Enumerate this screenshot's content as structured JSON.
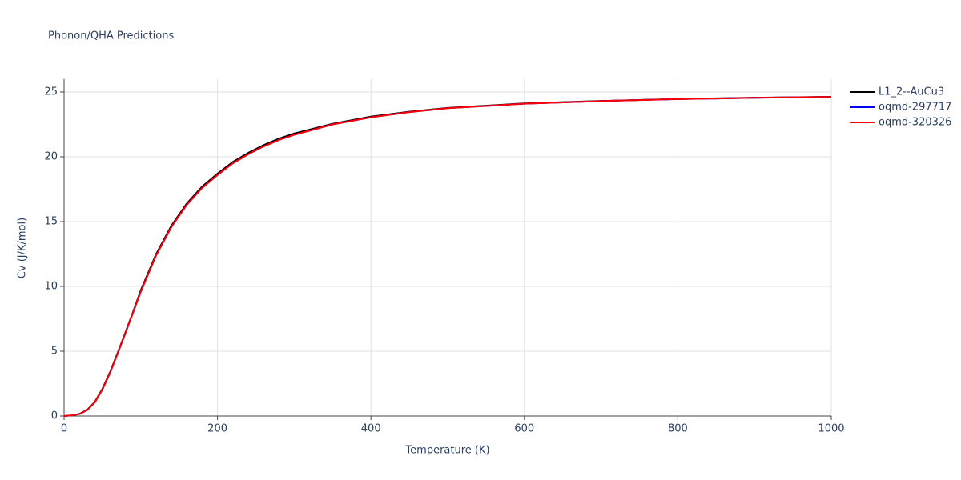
{
  "chart_data": {
    "type": "line",
    "title": "Phonon/QHA Predictions",
    "x_label": "Temperature (K)",
    "y_label": "Cv (J/K/mol)",
    "x": [
      0,
      10,
      20,
      30,
      40,
      50,
      60,
      70,
      80,
      90,
      100,
      120,
      140,
      160,
      180,
      200,
      220,
      240,
      260,
      280,
      300,
      350,
      400,
      450,
      500,
      600,
      700,
      800,
      900,
      1000
    ],
    "series": [
      {
        "name": "L1_2--AuCu3",
        "color": "#000000",
        "values": [
          0,
          0.05,
          0.16,
          0.47,
          1.08,
          2.1,
          3.4,
          4.9,
          6.45,
          8.05,
          9.7,
          12.5,
          14.7,
          16.4,
          17.7,
          18.7,
          19.6,
          20.3,
          20.9,
          21.4,
          21.8,
          22.55,
          23.1,
          23.48,
          23.77,
          24.12,
          24.31,
          24.46,
          24.56,
          24.63
        ]
      },
      {
        "name": "oqmd-297717",
        "color": "#0000ff",
        "values": [
          0,
          0.05,
          0.15,
          0.45,
          1.05,
          2.05,
          3.35,
          4.85,
          6.4,
          8.0,
          9.6,
          12.4,
          14.6,
          16.3,
          17.6,
          18.6,
          19.5,
          20.2,
          20.8,
          21.3,
          21.7,
          22.5,
          23.05,
          23.45,
          23.75,
          24.1,
          24.3,
          24.45,
          24.55,
          24.62
        ]
      },
      {
        "name": "oqmd-320326",
        "color": "#ff0000",
        "values": [
          0,
          0.05,
          0.15,
          0.45,
          1.05,
          2.05,
          3.35,
          4.85,
          6.4,
          8.0,
          9.6,
          12.4,
          14.6,
          16.3,
          17.6,
          18.6,
          19.5,
          20.2,
          20.8,
          21.3,
          21.7,
          22.5,
          23.05,
          23.45,
          23.75,
          24.1,
          24.3,
          24.45,
          24.55,
          24.62
        ]
      }
    ],
    "xlim": [
      0,
      1000
    ],
    "xticks": [
      0,
      200,
      400,
      600,
      800,
      1000
    ],
    "ylim": [
      0,
      26
    ],
    "yticks": [
      0,
      5,
      10,
      15,
      20,
      25
    ],
    "grid": true,
    "legend": "right"
  }
}
